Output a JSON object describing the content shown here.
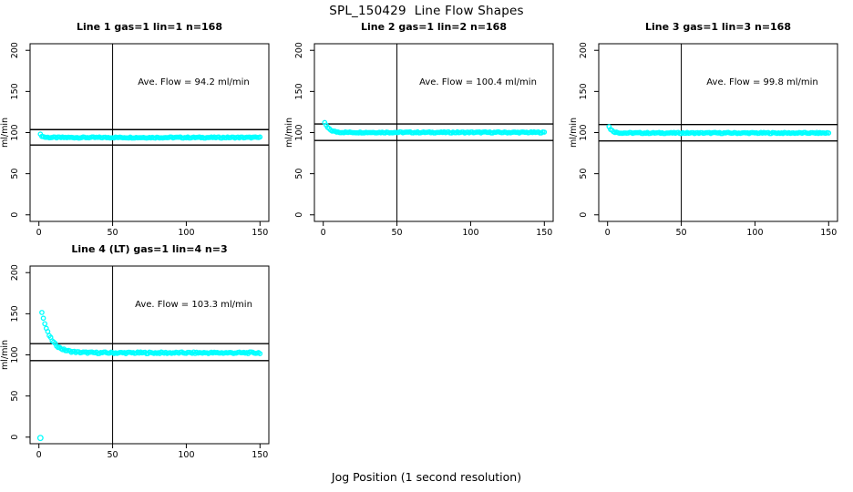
{
  "page": {
    "title": "SPL_150429  Line Flow Shapes",
    "xlabel": "Jog Position (1 second resolution)",
    "background": "#ffffff"
  },
  "colors": {
    "data_points": "#00ffff",
    "axis_lines": "#000000",
    "text": "#000000"
  },
  "chart_data": [
    {
      "type": "scatter",
      "title": "Line 1 gas=1 lin=1 n=168",
      "annotation": "Ave. Flow =  94.2  ml/min",
      "ave_flow_ml_min": 94.2,
      "n": 168,
      "ylabel": "ml/min",
      "xlim": [
        0,
        150
      ],
      "ylim": [
        0,
        200
      ],
      "xticks": [
        0,
        50,
        100,
        150
      ],
      "yticks": [
        0,
        50,
        100,
        150,
        200
      ],
      "vline_x": 50,
      "hlines": [
        103.6,
        84.8
      ],
      "annotation_pos": {
        "x": 105,
        "y": 158
      },
      "series_model": {
        "comment": "flat cyan point band: y = settle + amp*exp(-(x-x0)/tau) + jitter",
        "x_start": 1,
        "x_end": 150,
        "step": 1,
        "settle": 94.0,
        "start_amp": 3.5,
        "tau": 1.6,
        "jitter": 0.7,
        "outliers": []
      },
      "grid_pos": {
        "row": 0,
        "col": 0
      }
    },
    {
      "type": "scatter",
      "title": "Line 2 gas=1 lin=2 n=168",
      "annotation": "Ave. Flow =  100.4  ml/min",
      "ave_flow_ml_min": 100.4,
      "n": 168,
      "ylabel": "ml/min",
      "xlim": [
        0,
        150
      ],
      "ylim": [
        0,
        200
      ],
      "xticks": [
        0,
        50,
        100,
        150
      ],
      "yticks": [
        0,
        50,
        100,
        150,
        200
      ],
      "vline_x": 50,
      "hlines": [
        110.4,
        90.4
      ],
      "annotation_pos": {
        "x": 105,
        "y": 158
      },
      "series_model": {
        "comment": "starts ~112 at x=1, decays to ~100 by x~12",
        "x_start": 1,
        "x_end": 150,
        "step": 1,
        "settle": 100.2,
        "start_amp": 12,
        "tau": 2.8,
        "jitter": 0.7,
        "outliers": []
      },
      "grid_pos": {
        "row": 0,
        "col": 1
      }
    },
    {
      "type": "scatter",
      "title": "Line 3 gas=1 lin=3 n=168",
      "annotation": "Ave. Flow =  99.8  ml/min",
      "ave_flow_ml_min": 99.8,
      "n": 168,
      "ylabel": "ml/min",
      "xlim": [
        0,
        150
      ],
      "ylim": [
        0,
        200
      ],
      "xticks": [
        0,
        50,
        100,
        150
      ],
      "yticks": [
        0,
        50,
        100,
        150,
        200
      ],
      "vline_x": 50,
      "hlines": [
        109.8,
        89.8
      ],
      "annotation_pos": {
        "x": 105,
        "y": 158
      },
      "series_model": {
        "comment": "starts ~107 at x=1, decays to ~100 by x~8",
        "x_start": 1,
        "x_end": 150,
        "step": 1,
        "settle": 99.5,
        "start_amp": 7.5,
        "tau": 2.2,
        "jitter": 0.7,
        "outliers": []
      },
      "grid_pos": {
        "row": 0,
        "col": 2
      }
    },
    {
      "type": "scatter",
      "title": "Line 4 (LT) gas=1 lin=4 n=3",
      "annotation": "Ave. Flow =  103.3  ml/min",
      "ave_flow_ml_min": 103.3,
      "n": 3,
      "ylabel": "ml/min",
      "xlim": [
        0,
        150
      ],
      "ylim": [
        0,
        200
      ],
      "xticks": [
        0,
        50,
        100,
        150
      ],
      "yticks": [
        0,
        50,
        100,
        150,
        200
      ],
      "vline_x": 50,
      "hlines": [
        113.6,
        93.0
      ],
      "annotation_pos": {
        "x": 105,
        "y": 158
      },
      "series_model": {
        "comment": "single outlier near (1,-1); main run starts ~152 at x=2 and decays to ~103 by x~25",
        "x_start": 2,
        "x_end": 150,
        "step": 1,
        "settle": 102.5,
        "start_amp": 50,
        "tau": 5.8,
        "jitter": 1.0,
        "outliers": [
          [
            1,
            -1
          ]
        ]
      },
      "grid_pos": {
        "row": 1,
        "col": 0
      }
    }
  ]
}
